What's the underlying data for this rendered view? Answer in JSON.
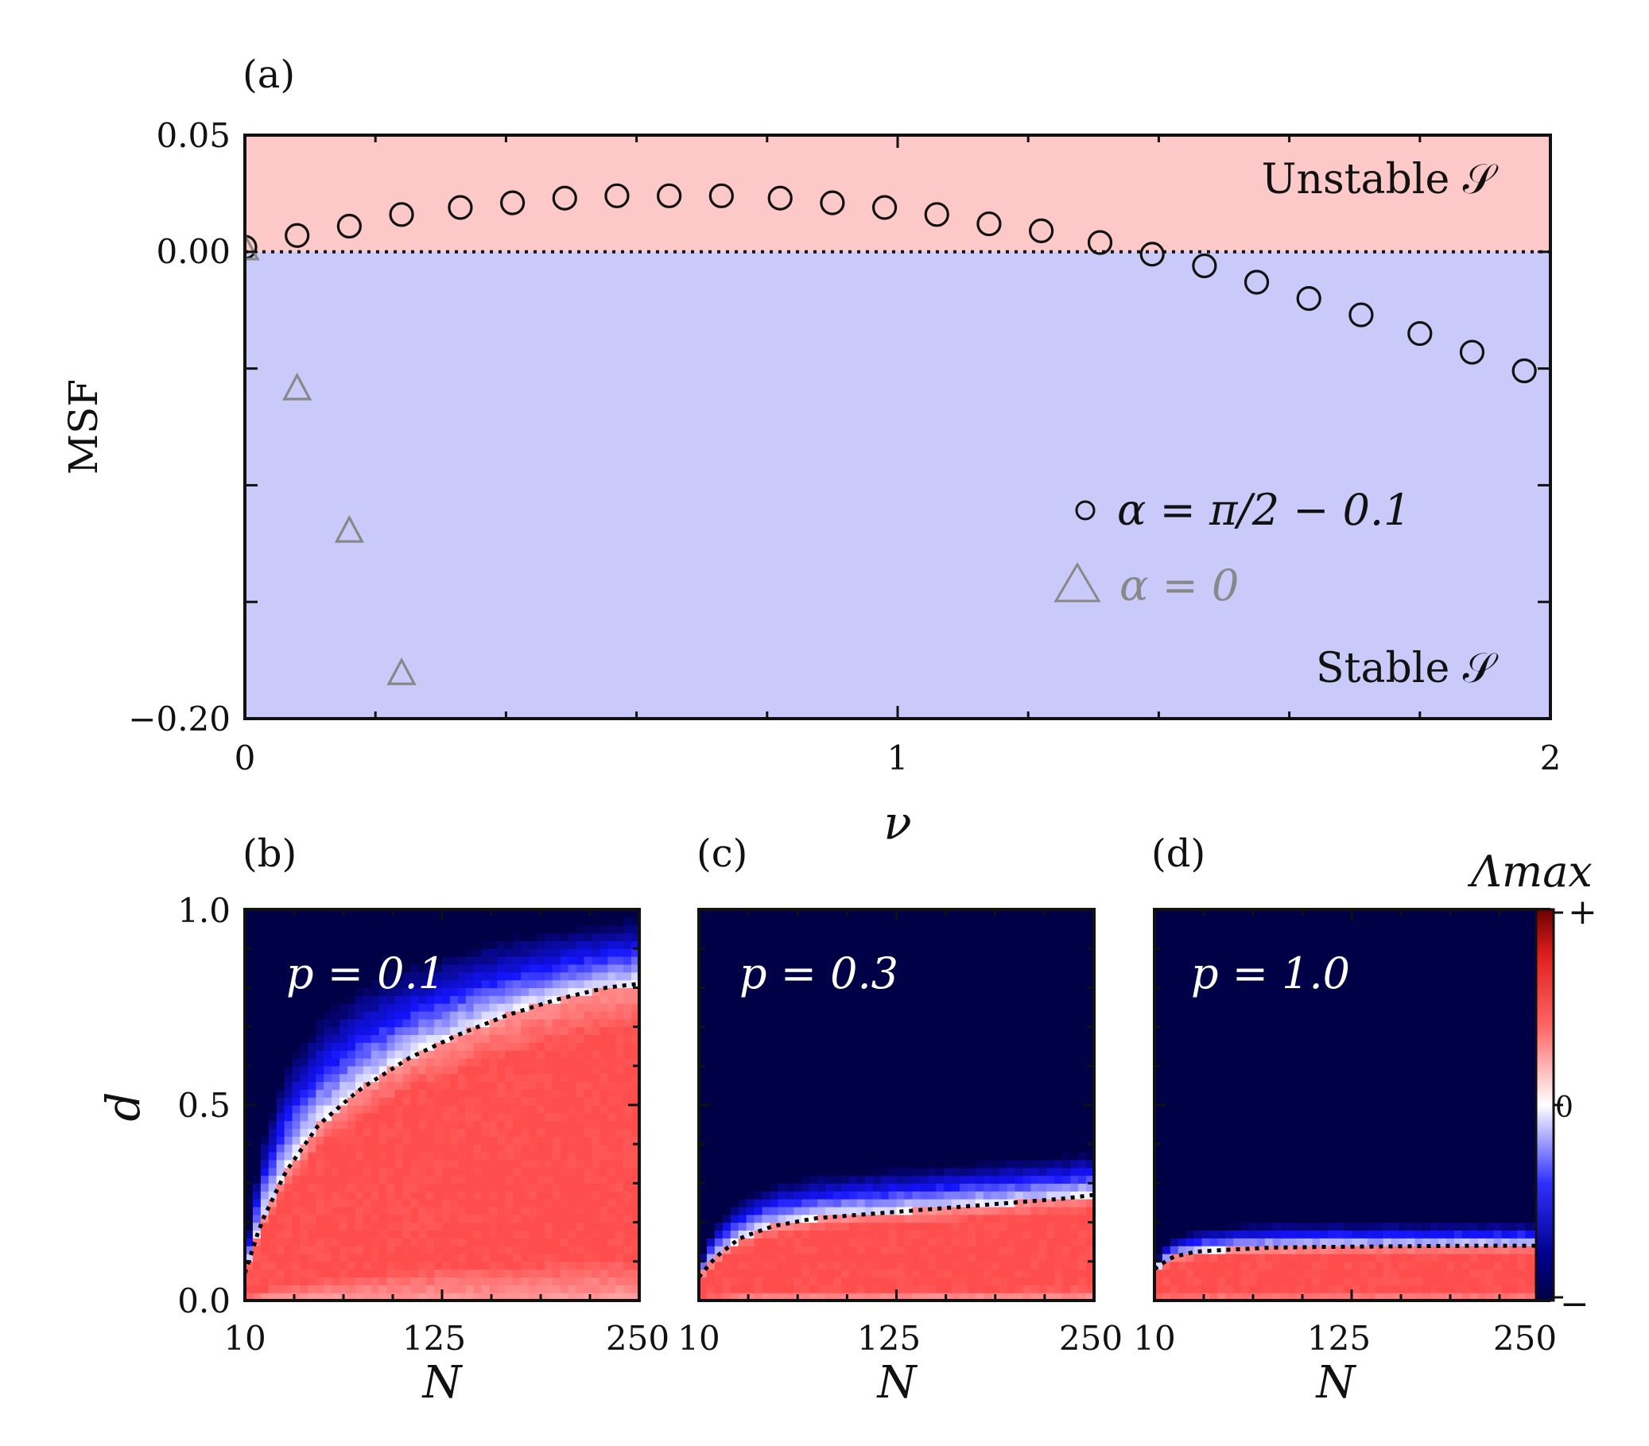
{
  "chart_data": [
    {
      "type": "scatter",
      "panel": "(a)",
      "xlabel": "ν",
      "ylabel": "MSF",
      "xlim": [
        0,
        2
      ],
      "ylim": [
        -0.2,
        0.05
      ],
      "xticks": [
        0,
        1,
        2
      ],
      "yticks_labeled": [
        0.05,
        0.0,
        -0.2
      ],
      "ytick_labels": [
        "0.05",
        "0.00",
        "−0.20"
      ],
      "xtick_labels": [
        "0",
        "1",
        "2"
      ],
      "region_colors": {
        "unstable": "#fcc8c8",
        "stable": "#cacafa"
      },
      "region_labels": {
        "unstable": "Unstable 𝒮",
        "stable": "Stable 𝒮"
      },
      "reference_line": {
        "y": 0,
        "style": "dotted"
      },
      "legend": {
        "placement": "lower-right",
        "entries": [
          "α = π/2 − 0.1",
          "α = 0"
        ]
      },
      "series": [
        {
          "name": "α = π/2 − 0.1",
          "marker": "circle",
          "color": "#111111",
          "x": [
            0.0,
            0.08,
            0.16,
            0.24,
            0.33,
            0.41,
            0.49,
            0.57,
            0.65,
            0.73,
            0.82,
            0.9,
            0.98,
            1.06,
            1.14,
            1.22,
            1.31,
            1.39,
            1.47,
            1.55,
            1.63,
            1.71,
            1.8,
            1.88,
            1.96
          ],
          "y": [
            0.002,
            0.007,
            0.011,
            0.016,
            0.019,
            0.021,
            0.023,
            0.024,
            0.024,
            0.024,
            0.023,
            0.021,
            0.019,
            0.016,
            0.012,
            0.009,
            0.004,
            -0.001,
            -0.006,
            -0.013,
            -0.02,
            -0.027,
            -0.035,
            -0.043,
            -0.051
          ]
        },
        {
          "name": "α = 0",
          "marker": "triangle",
          "color": "#888888",
          "x": [
            0.0,
            0.08,
            0.16,
            0.24
          ],
          "y": [
            0.001,
            -0.059,
            -0.12,
            -0.181
          ]
        }
      ]
    },
    {
      "type": "heatmap",
      "panel": "(b)",
      "annotation": "p = 0.1",
      "xlabel": "N",
      "ylabel": "d",
      "xlim": [
        10,
        250
      ],
      "ylim": [
        0,
        1
      ],
      "xtick_labels": [
        "10",
        "125",
        "250"
      ],
      "ytick_labels": [
        "0.0",
        "0.5",
        "1.0"
      ],
      "boundary": {
        "N": [
          10,
          20,
          35,
          55,
          80,
          110,
          140,
          170,
          200,
          230,
          250
        ],
        "d": [
          0.07,
          0.2,
          0.33,
          0.45,
          0.54,
          0.62,
          0.68,
          0.73,
          0.77,
          0.8,
          0.81
        ]
      },
      "stable_upper": {
        "N": [
          10,
          20,
          35,
          55,
          80,
          110,
          140,
          170,
          200,
          230,
          250
        ],
        "d": [
          0.12,
          0.4,
          0.6,
          0.72,
          0.8,
          0.86,
          0.9,
          0.93,
          0.95,
          0.97,
          0.98
        ]
      }
    },
    {
      "type": "heatmap",
      "panel": "(c)",
      "annotation": "p = 0.3",
      "xlabel": "N",
      "xlim": [
        10,
        250
      ],
      "ylim": [
        0,
        1
      ],
      "xtick_labels": [
        "10",
        "125",
        "250"
      ],
      "boundary": {
        "N": [
          10,
          20,
          35,
          55,
          80,
          110,
          140,
          170,
          200,
          230,
          250
        ],
        "d": [
          0.06,
          0.11,
          0.16,
          0.19,
          0.21,
          0.22,
          0.23,
          0.24,
          0.25,
          0.26,
          0.27
        ]
      },
      "stable_upper": {
        "N": [
          10,
          20,
          35,
          55,
          80,
          110,
          140,
          170,
          200,
          230,
          250
        ],
        "d": [
          0.1,
          0.2,
          0.26,
          0.3,
          0.32,
          0.33,
          0.34,
          0.35,
          0.36,
          0.37,
          0.38
        ]
      }
    },
    {
      "type": "heatmap",
      "panel": "(d)",
      "annotation": "p = 1.0",
      "xlabel": "N",
      "xlim": [
        10,
        250
      ],
      "ylim": [
        0,
        1
      ],
      "xtick_labels": [
        "10",
        "125",
        "250"
      ],
      "boundary": {
        "N": [
          10,
          20,
          35,
          55,
          80,
          110,
          140,
          170,
          200,
          230,
          250
        ],
        "d": [
          0.08,
          0.11,
          0.125,
          0.13,
          0.135,
          0.137,
          0.138,
          0.139,
          0.14,
          0.14,
          0.14
        ]
      },
      "stable_upper": {
        "N": [
          10,
          20,
          35,
          55,
          80,
          110,
          140,
          170,
          200,
          230,
          250
        ],
        "d": [
          0.1,
          0.16,
          0.18,
          0.19,
          0.2,
          0.2,
          0.2,
          0.2,
          0.2,
          0.2,
          0.2
        ]
      }
    }
  ],
  "colorbar": {
    "title": "Λmax",
    "labels": [
      "+",
      "0",
      "−"
    ],
    "colors": [
      "#6e0000",
      "#ff4d4d",
      "#ffffff",
      "#1a1aff",
      "#000046"
    ]
  },
  "colors": {
    "unstable_red": "#ff4d4d",
    "stable_blue": "#000046",
    "frame": "#111111"
  }
}
